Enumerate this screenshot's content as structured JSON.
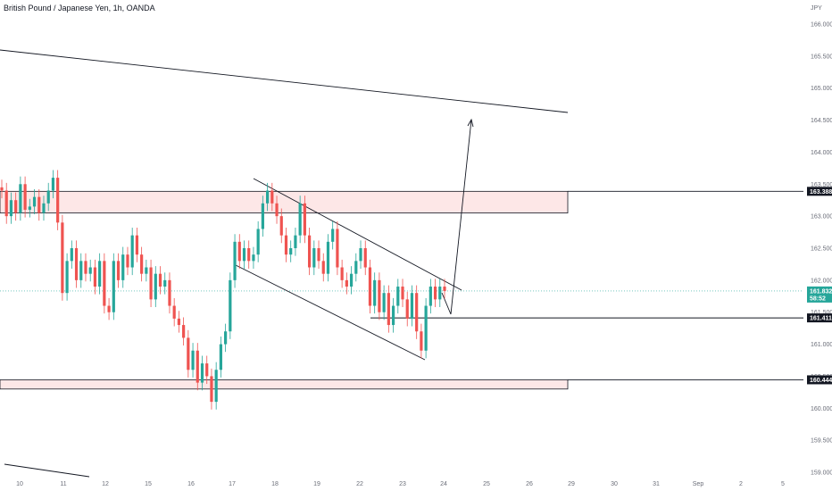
{
  "header": {
    "title": "British Pound / Japanese Yen, 1h, OANDA"
  },
  "chart_data": {
    "type": "line",
    "title": "British Pound / Japanese Yen, 1h, OANDA",
    "currency_label": "JPY",
    "ylim": [
      158.9,
      166.3
    ],
    "y_ticks": [
      "166.000",
      "165.500",
      "165.000",
      "164.500",
      "164.000",
      "163.500",
      "163.000",
      "162.500",
      "162.000",
      "161.500",
      "161.000",
      "160.500",
      "160.000",
      "159.500",
      "159.000"
    ],
    "x_ticks": [
      "10",
      "11",
      "12",
      "15",
      "16",
      "17",
      "18",
      "19",
      "22",
      "23",
      "24",
      "25",
      "26",
      "29",
      "30",
      "31",
      "Sep",
      "2",
      "5"
    ],
    "badges": [
      {
        "label": "163.388",
        "bg": "#131722",
        "fg": "#ffffff"
      },
      {
        "label": "161.832",
        "label2": "58:52",
        "bg": "#26a69a",
        "fg": "#ffffff"
      },
      {
        "label": "161.411",
        "bg": "#131722",
        "fg": "#ffffff"
      },
      {
        "label": "160.444",
        "bg": "#131722",
        "fg": "#ffffff"
      }
    ],
    "zones": [
      {
        "name": "resistance",
        "top": 163.388,
        "bottom": 163.05,
        "color": "#fde7e7"
      },
      {
        "name": "support",
        "top": 160.444,
        "bottom": 160.3,
        "color": "#fde7e7"
      }
    ],
    "horizontal_lines": [
      161.411
    ],
    "current_price": 161.832,
    "series": [
      {
        "values": [
          163.4,
          163.0,
          163.25,
          163.05,
          163.5,
          163.1,
          163.15,
          163.3,
          163.05,
          163.2,
          163.4,
          163.6,
          162.9,
          161.8,
          162.3,
          162.5,
          162.0,
          162.3,
          162.1,
          162.2,
          161.9,
          162.3,
          161.6,
          161.5,
          162.3,
          162.0,
          162.4,
          162.2,
          162.7,
          162.4,
          162.1,
          162.2,
          161.7,
          162.1,
          161.9,
          162.0,
          161.6,
          161.4,
          161.3,
          161.1,
          160.6,
          160.9,
          160.4,
          160.7,
          160.5,
          160.1,
          160.6,
          161.0,
          161.2,
          162.0,
          162.6,
          162.3,
          162.5,
          162.3,
          162.4,
          162.8,
          163.2,
          163.4,
          163.2,
          163.0,
          162.7,
          162.4,
          162.5,
          162.7,
          163.2,
          162.7,
          162.2,
          162.5,
          162.3,
          162.1,
          162.6,
          162.8,
          162.2,
          162.0,
          161.9,
          162.1,
          162.3,
          162.5,
          162.2,
          161.6,
          162.0,
          161.5,
          161.8,
          161.3,
          161.6,
          161.9,
          161.7,
          161.4,
          161.8,
          161.2,
          160.9,
          161.6,
          161.9,
          161.7,
          161.9,
          161.832
        ]
      }
    ]
  }
}
